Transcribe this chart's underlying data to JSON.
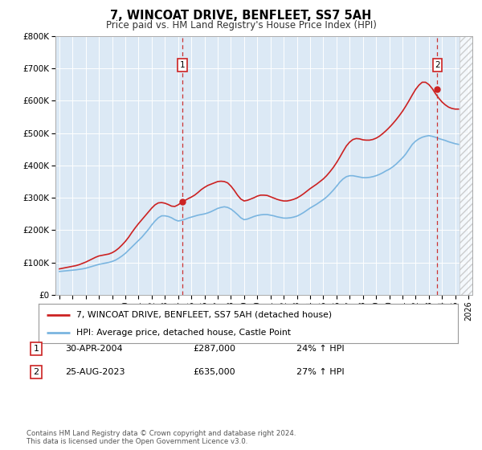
{
  "title": "7, WINCOAT DRIVE, BENFLEET, SS7 5AH",
  "subtitle": "Price paid vs. HM Land Registry's House Price Index (HPI)",
  "ylim": [
    0,
    800000
  ],
  "yticks": [
    0,
    100000,
    200000,
    300000,
    400000,
    500000,
    600000,
    700000,
    800000
  ],
  "ytick_labels": [
    "£0",
    "£100K",
    "£200K",
    "£300K",
    "£400K",
    "£500K",
    "£600K",
    "£700K",
    "£800K"
  ],
  "xlim_start": 1994.7,
  "xlim_end": 2026.3,
  "background_color": "#ffffff",
  "plot_bg_color": "#dce9f5",
  "grid_color": "#ffffff",
  "hpi_line_color": "#7ab5e0",
  "price_line_color": "#cc2222",
  "marker1_date_x": 2004.33,
  "marker1_y": 287000,
  "marker2_date_x": 2023.65,
  "marker2_y": 635000,
  "hatch_start": 2025.3,
  "footer_text": "Contains HM Land Registry data © Crown copyright and database right 2024.\nThis data is licensed under the Open Government Licence v3.0.",
  "legend_label_price": "7, WINCOAT DRIVE, BENFLEET, SS7 5AH (detached house)",
  "legend_label_hpi": "HPI: Average price, detached house, Castle Point",
  "annotation1_label": "1",
  "annotation1_date": "30-APR-2004",
  "annotation1_price": "£287,000",
  "annotation1_hpi": "24% ↑ HPI",
  "annotation2_label": "2",
  "annotation2_date": "25-AUG-2023",
  "annotation2_price": "£635,000",
  "annotation2_hpi": "27% ↑ HPI",
  "years_hpi": [
    1995.0,
    1995.25,
    1995.5,
    1995.75,
    1996.0,
    1996.25,
    1996.5,
    1996.75,
    1997.0,
    1997.25,
    1997.5,
    1997.75,
    1998.0,
    1998.25,
    1998.5,
    1998.75,
    1999.0,
    1999.25,
    1999.5,
    1999.75,
    2000.0,
    2000.25,
    2000.5,
    2000.75,
    2001.0,
    2001.25,
    2001.5,
    2001.75,
    2002.0,
    2002.25,
    2002.5,
    2002.75,
    2003.0,
    2003.25,
    2003.5,
    2003.75,
    2004.0,
    2004.25,
    2004.5,
    2004.75,
    2005.0,
    2005.25,
    2005.5,
    2005.75,
    2006.0,
    2006.25,
    2006.5,
    2006.75,
    2007.0,
    2007.25,
    2007.5,
    2007.75,
    2008.0,
    2008.25,
    2008.5,
    2008.75,
    2009.0,
    2009.25,
    2009.5,
    2009.75,
    2010.0,
    2010.25,
    2010.5,
    2010.75,
    2011.0,
    2011.25,
    2011.5,
    2011.75,
    2012.0,
    2012.25,
    2012.5,
    2012.75,
    2013.0,
    2013.25,
    2013.5,
    2013.75,
    2014.0,
    2014.25,
    2014.5,
    2014.75,
    2015.0,
    2015.25,
    2015.5,
    2015.75,
    2016.0,
    2016.25,
    2016.5,
    2016.75,
    2017.0,
    2017.25,
    2017.5,
    2017.75,
    2018.0,
    2018.25,
    2018.5,
    2018.75,
    2019.0,
    2019.25,
    2019.5,
    2019.75,
    2020.0,
    2020.25,
    2020.5,
    2020.75,
    2021.0,
    2021.25,
    2021.5,
    2021.75,
    2022.0,
    2022.25,
    2022.5,
    2022.75,
    2023.0,
    2023.25,
    2023.5,
    2023.75,
    2024.0,
    2024.25,
    2024.5,
    2024.75,
    2025.0,
    2025.25
  ],
  "hpi_values": [
    72000,
    73000,
    74000,
    75000,
    76000,
    77000,
    78500,
    80000,
    82000,
    85000,
    88000,
    91000,
    94000,
    96000,
    98000,
    100000,
    103000,
    107000,
    113000,
    120000,
    128000,
    138000,
    148000,
    158000,
    168000,
    178000,
    190000,
    202000,
    216000,
    228000,
    238000,
    244000,
    244000,
    242000,
    238000,
    232000,
    228000,
    230000,
    233000,
    237000,
    240000,
    243000,
    246000,
    248000,
    250000,
    253000,
    257000,
    262000,
    267000,
    270000,
    272000,
    270000,
    265000,
    257000,
    248000,
    238000,
    232000,
    234000,
    238000,
    242000,
    245000,
    247000,
    248000,
    248000,
    246000,
    244000,
    241000,
    239000,
    237000,
    237000,
    238000,
    240000,
    243000,
    248000,
    254000,
    261000,
    268000,
    274000,
    280000,
    287000,
    294000,
    302000,
    312000,
    323000,
    335000,
    348000,
    358000,
    365000,
    368000,
    368000,
    366000,
    364000,
    362000,
    362000,
    363000,
    365000,
    368000,
    372000,
    377000,
    383000,
    388000,
    395000,
    403000,
    413000,
    423000,
    435000,
    450000,
    465000,
    475000,
    482000,
    487000,
    490000,
    492000,
    490000,
    487000,
    483000,
    480000,
    477000,
    473000,
    470000,
    467000,
    465000
  ],
  "years_price": [
    1995.0,
    1995.25,
    1995.5,
    1995.75,
    1996.0,
    1996.25,
    1996.5,
    1996.75,
    1997.0,
    1997.25,
    1997.5,
    1997.75,
    1998.0,
    1998.25,
    1998.5,
    1998.75,
    1999.0,
    1999.25,
    1999.5,
    1999.75,
    2000.0,
    2000.25,
    2000.5,
    2000.75,
    2001.0,
    2001.25,
    2001.5,
    2001.75,
    2002.0,
    2002.25,
    2002.5,
    2002.75,
    2003.0,
    2003.25,
    2003.5,
    2003.75,
    2004.0,
    2004.25,
    2004.5,
    2004.75,
    2005.0,
    2005.25,
    2005.5,
    2005.75,
    2006.0,
    2006.25,
    2006.5,
    2006.75,
    2007.0,
    2007.25,
    2007.5,
    2007.75,
    2008.0,
    2008.25,
    2008.5,
    2008.75,
    2009.0,
    2009.25,
    2009.5,
    2009.75,
    2010.0,
    2010.25,
    2010.5,
    2010.75,
    2011.0,
    2011.25,
    2011.5,
    2011.75,
    2012.0,
    2012.25,
    2012.5,
    2012.75,
    2013.0,
    2013.25,
    2013.5,
    2013.75,
    2014.0,
    2014.25,
    2014.5,
    2014.75,
    2015.0,
    2015.25,
    2015.5,
    2015.75,
    2016.0,
    2016.25,
    2016.5,
    2016.75,
    2017.0,
    2017.25,
    2017.5,
    2017.75,
    2018.0,
    2018.25,
    2018.5,
    2018.75,
    2019.0,
    2019.25,
    2019.5,
    2019.75,
    2020.0,
    2020.25,
    2020.5,
    2020.75,
    2021.0,
    2021.25,
    2021.5,
    2021.75,
    2022.0,
    2022.25,
    2022.5,
    2022.75,
    2023.0,
    2023.25,
    2023.5,
    2023.75,
    2024.0,
    2024.25,
    2024.5,
    2024.75,
    2025.0,
    2025.25
  ],
  "price_values": [
    80000,
    82000,
    84000,
    86000,
    88000,
    90000,
    93000,
    97000,
    101000,
    106000,
    111000,
    116000,
    120000,
    122000,
    124000,
    126000,
    130000,
    136000,
    144000,
    154000,
    165000,
    178000,
    193000,
    207000,
    220000,
    232000,
    244000,
    256000,
    268000,
    278000,
    284000,
    285000,
    283000,
    279000,
    274000,
    273000,
    278000,
    285000,
    291000,
    297000,
    302000,
    308000,
    316000,
    325000,
    332000,
    338000,
    342000,
    346000,
    350000,
    351000,
    350000,
    346000,
    336000,
    323000,
    308000,
    296000,
    290000,
    292000,
    296000,
    300000,
    305000,
    308000,
    308000,
    307000,
    303000,
    299000,
    295000,
    292000,
    290000,
    290000,
    292000,
    295000,
    299000,
    305000,
    312000,
    320000,
    328000,
    335000,
    342000,
    350000,
    358000,
    368000,
    380000,
    393000,
    408000,
    425000,
    443000,
    460000,
    472000,
    480000,
    483000,
    482000,
    479000,
    478000,
    478000,
    480000,
    484000,
    490000,
    498000,
    507000,
    517000,
    528000,
    540000,
    553000,
    567000,
    583000,
    600000,
    618000,
    635000,
    648000,
    657000,
    657000,
    650000,
    638000,
    622000,
    608000,
    596000,
    587000,
    580000,
    576000,
    574000,
    574000
  ]
}
